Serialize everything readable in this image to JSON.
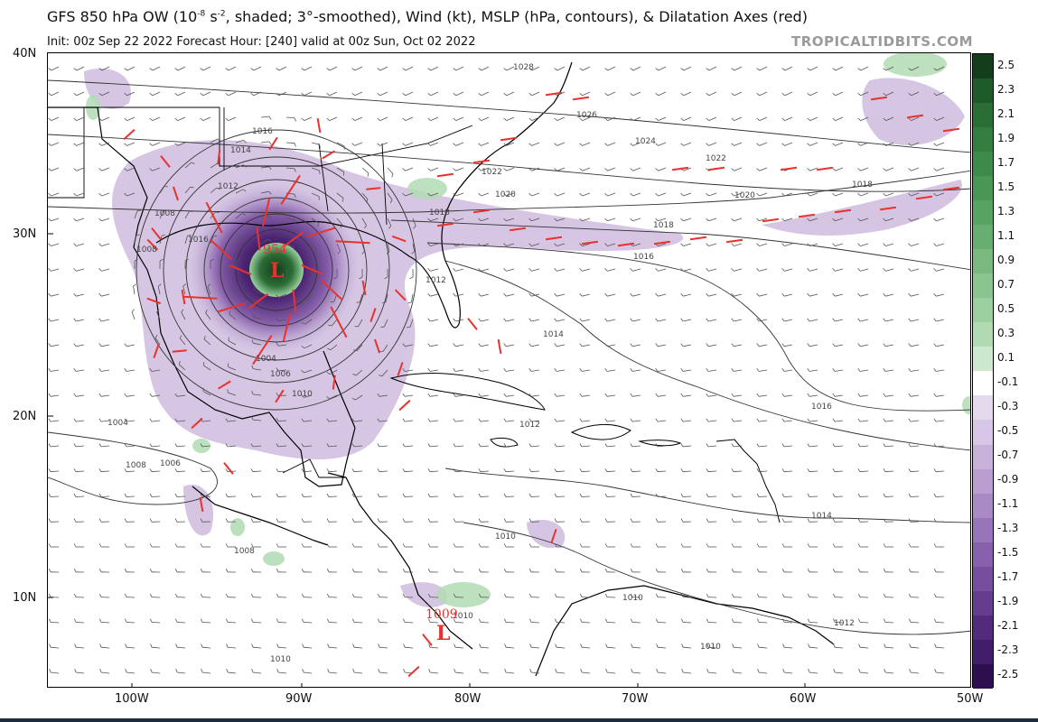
{
  "header": {
    "title_main": "GFS 850 hPa OW (10",
    "title_exp": "-8",
    "title_mid": " s",
    "title_exp2": "-2",
    "title_rest": ", shaded; 3°-smoothed), Wind (kt), MSLP (hPa, contours), & Dilatation Axes (red)",
    "subtitle": "Init: 00z Sep 22 2022   Forecast Hour: [240]   valid at 00z Sun, Oct 02 2022",
    "brand": "TROPICALTIDBITS.COM"
  },
  "axes": {
    "lat_labels": [
      "40N",
      "30N",
      "20N",
      "10N"
    ],
    "lon_labels": [
      "100W",
      "90W",
      "80W",
      "70W",
      "60W",
      "50W"
    ]
  },
  "map": {
    "lows": [
      {
        "symbol": "L",
        "pressure": "954"
      },
      {
        "symbol": "L",
        "pressure": "1009"
      }
    ],
    "isobar_labels": [
      "1028",
      "1026",
      "1024",
      "1022",
      "1022",
      "1020",
      "1020",
      "1018",
      "1018",
      "1018",
      "1016",
      "1016",
      "1016",
      "1016",
      "1014",
      "1014",
      "1014",
      "1012",
      "1012",
      "1012",
      "1010",
      "1010",
      "1010",
      "1010",
      "1010",
      "1008",
      "1008",
      "1008",
      "1008",
      "1006",
      "1006",
      "1004",
      "1004",
      "1010",
      "1012"
    ]
  },
  "colorbar": {
    "labels": [
      "2.5",
      "2.3",
      "2.1",
      "1.9",
      "1.7",
      "1.5",
      "1.3",
      "1.1",
      "0.9",
      "0.7",
      "0.5",
      "0.3",
      "0.1",
      "-0.1",
      "-0.3",
      "-0.5",
      "-0.7",
      "-0.9",
      "-1.1",
      "-1.3",
      "-1.5",
      "-1.7",
      "-1.9",
      "-2.1",
      "-2.3",
      "-2.5"
    ],
    "colors": [
      "#143d1c",
      "#1f5a2a",
      "#2a6e36",
      "#347d40",
      "#3d8a4a",
      "#4a9655",
      "#58a362",
      "#68ae70",
      "#79b97f",
      "#8ac48f",
      "#9ccf9f",
      "#b1dab3",
      "#cde8ce",
      "#ffffff",
      "#e5d9ee",
      "#d7c6e5",
      "#c8b2da",
      "#b99ecf",
      "#a98ac4",
      "#9875b8",
      "#8761ab",
      "#764e9d",
      "#653c8e",
      "#532b7c",
      "#421d69",
      "#2d0f4f"
    ]
  }
}
